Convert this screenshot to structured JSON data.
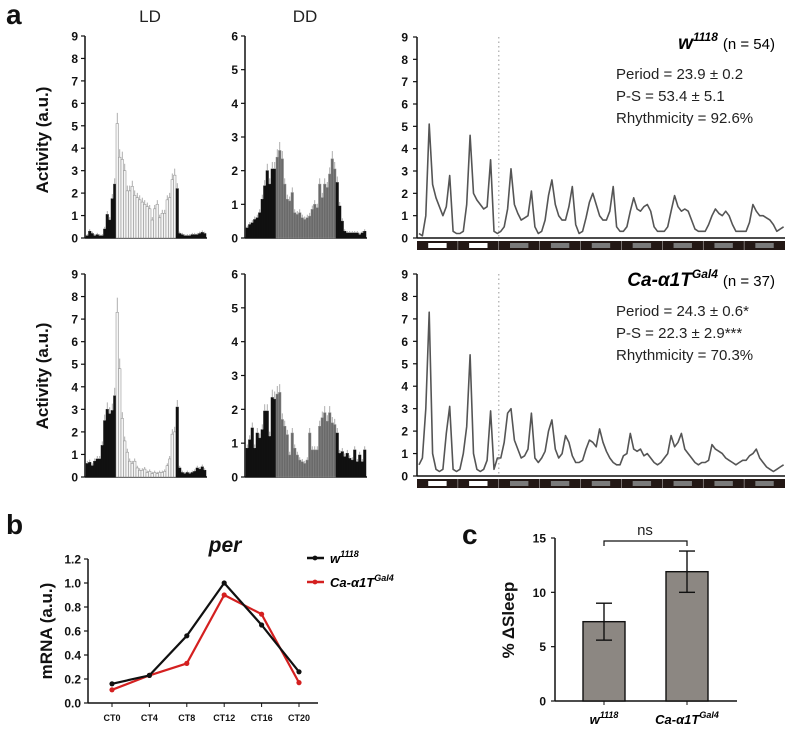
{
  "panels": {
    "a": "a",
    "b": "b",
    "c": "c"
  },
  "chart_data": [
    {
      "type": "bar",
      "title": "LD",
      "ylabel": "Activity (a.u.)",
      "ylim": [
        0,
        9
      ],
      "yticks": [
        "0",
        "1",
        "2",
        "3",
        "4",
        "5",
        "6",
        "7",
        "8",
        "9"
      ],
      "genotype": "w1118",
      "light_bins": [
        12,
        35
      ],
      "light_style": "light",
      "values": [
        0.1,
        0.3,
        0.2,
        0.1,
        0.15,
        0.1,
        0.1,
        0.4,
        1.05,
        0.8,
        1.75,
        2.4,
        5.1,
        3.6,
        3.5,
        3.0,
        2.1,
        2.1,
        2.3,
        1.9,
        1.8,
        1.7,
        1.6,
        1.5,
        1.4,
        1.3,
        0.8,
        1.3,
        1.5,
        0.9,
        1.1,
        1.1,
        1.7,
        1.8,
        2.6,
        2.8,
        2.2,
        0.2,
        0.15,
        0.1,
        0.1,
        0.1,
        0.15,
        0.15,
        0.15,
        0.2,
        0.25,
        0.2
      ]
    },
    {
      "type": "bar",
      "title": "DD",
      "ylim": [
        0,
        6
      ],
      "yticks": [
        "0",
        "1",
        "2",
        "3",
        "4",
        "5",
        "6"
      ],
      "genotype": "w1118",
      "light_bins": [
        12,
        35
      ],
      "light_style": "subjective",
      "values": [
        0.3,
        0.4,
        0.45,
        0.55,
        0.6,
        0.75,
        1.15,
        1.55,
        2.0,
        1.6,
        2.05,
        2.05,
        2.4,
        2.6,
        2.35,
        1.6,
        1.15,
        1.1,
        1.35,
        0.75,
        0.7,
        0.75,
        0.6,
        0.55,
        0.6,
        0.65,
        0.85,
        1.0,
        0.9,
        1.6,
        1.2,
        1.6,
        1.5,
        1.9,
        2.35,
        2.05,
        1.65,
        0.95,
        0.5,
        0.2,
        0.15,
        0.15,
        0.15,
        0.15,
        0.15,
        0.1,
        0.15,
        0.2
      ]
    },
    {
      "type": "line",
      "ylim": [
        0,
        9
      ],
      "yticks": [
        "0",
        "1",
        "2",
        "3",
        "4",
        "5",
        "6",
        "7",
        "8",
        "9"
      ],
      "genotype": "w",
      "genotype_sup": "1118",
      "n": "(n = 54)",
      "stats": [
        "Period = 23.9 ± 0.2",
        "P-S = 53.4 ± 5.1",
        "Rhythmicity = 92.6%"
      ],
      "days": 9,
      "ld_days": 2,
      "values": [
        0.2,
        0.1,
        1.0,
        5.1,
        2.4,
        1.8,
        1.4,
        1.0,
        1.4,
        2.8,
        0.3,
        0.2,
        0.2,
        0.3,
        1.5,
        4.6,
        2.0,
        1.7,
        1.5,
        1.3,
        1.4,
        3.5,
        0.3,
        0.2,
        0.3,
        0.5,
        1.3,
        3.1,
        1.5,
        1.1,
        0.8,
        0.9,
        1.0,
        2.1,
        0.5,
        0.2,
        0.3,
        0.8,
        1.9,
        2.6,
        1.5,
        1.0,
        0.8,
        0.8,
        1.4,
        2.3,
        0.6,
        0.2,
        0.3,
        0.9,
        1.6,
        2.0,
        1.5,
        1.0,
        0.8,
        0.8,
        1.2,
        2.3,
        0.5,
        0.3,
        0.3,
        0.5,
        1.2,
        1.8,
        1.3,
        1.2,
        1.4,
        1.5,
        1.2,
        0.5,
        0.3,
        0.3,
        0.3,
        0.5,
        1.2,
        1.9,
        1.4,
        1.2,
        1.3,
        1.2,
        0.8,
        0.4,
        0.3,
        0.3,
        0.3,
        0.6,
        1.0,
        1.3,
        1.1,
        1.0,
        1.2,
        1.0,
        0.6,
        0.3,
        0.3,
        0.3,
        0.3,
        0.7,
        1.5,
        1.2,
        1.0,
        1.0,
        0.9,
        0.8,
        0.6,
        0.3,
        0.4,
        0.5
      ]
    },
    {
      "type": "bar",
      "ylabel": "Activity (a.u.)",
      "ylim": [
        0,
        9
      ],
      "yticks": [
        "0",
        "1",
        "2",
        "3",
        "4",
        "5",
        "6",
        "7",
        "8",
        "9"
      ],
      "genotype": "Ca-α1TGal4",
      "light_bins": [
        12,
        35
      ],
      "light_style": "light",
      "values": [
        0.6,
        0.65,
        0.5,
        0.7,
        0.8,
        0.8,
        1.4,
        2.5,
        3.0,
        2.8,
        2.95,
        3.6,
        7.3,
        4.8,
        2.6,
        1.6,
        1.1,
        0.7,
        0.6,
        0.7,
        0.4,
        0.3,
        0.3,
        0.35,
        0.2,
        0.25,
        0.15,
        0.2,
        0.15,
        0.2,
        0.2,
        0.25,
        0.5,
        0.8,
        1.9,
        2.0,
        3.1,
        0.4,
        0.2,
        0.15,
        0.2,
        0.15,
        0.2,
        0.25,
        0.4,
        0.35,
        0.45,
        0.3
      ]
    },
    {
      "type": "bar",
      "ylim": [
        0,
        6
      ],
      "yticks": [
        "0",
        "1",
        "2",
        "3",
        "4",
        "5",
        "6"
      ],
      "genotype": "Ca-α1TGal4",
      "light_bins": [
        12,
        35
      ],
      "light_style": "subjective",
      "values": [
        0.85,
        1.1,
        1.45,
        0.85,
        1.3,
        1.15,
        1.4,
        1.95,
        1.95,
        1.2,
        2.35,
        2.3,
        2.45,
        2.5,
        1.7,
        1.5,
        1.25,
        0.65,
        1.3,
        0.85,
        0.65,
        0.5,
        0.45,
        0.4,
        0.5,
        1.3,
        0.8,
        0.8,
        0.8,
        1.5,
        1.75,
        1.9,
        1.65,
        1.9,
        1.6,
        1.55,
        1.3,
        0.7,
        0.75,
        0.6,
        0.7,
        0.55,
        0.5,
        0.8,
        0.45,
        0.65,
        0.45,
        0.8
      ]
    },
    {
      "type": "line",
      "ylim": [
        0,
        9
      ],
      "yticks": [
        "0",
        "1",
        "2",
        "3",
        "4",
        "5",
        "6",
        "7",
        "8",
        "9"
      ],
      "genotype": "Ca-α1T",
      "genotype_sup": "Gal4",
      "n": "(n = 37)",
      "stats": [
        "Period = 24.3 ± 0.6*",
        "P-S = 22.3 ± 2.9***",
        "Rhythmicity = 70.3%"
      ],
      "days": 9,
      "ld_days": 2,
      "values": [
        0.5,
        0.8,
        3.0,
        7.3,
        1.0,
        0.3,
        0.2,
        0.3,
        1.9,
        3.1,
        0.3,
        0.2,
        0.3,
        1.0,
        2.2,
        5.4,
        1.0,
        0.3,
        0.2,
        0.3,
        0.7,
        2.9,
        0.3,
        0.8,
        0.8,
        1.5,
        2.8,
        3.0,
        1.6,
        1.2,
        0.8,
        0.9,
        1.2,
        2.8,
        0.8,
        0.6,
        0.8,
        1.1,
        2.0,
        2.5,
        1.2,
        0.8,
        1.0,
        1.8,
        1.5,
        0.9,
        0.6,
        0.6,
        0.7,
        1.2,
        1.6,
        1.5,
        1.3,
        2.1,
        1.5,
        1.1,
        0.8,
        0.6,
        0.5,
        0.5,
        0.9,
        1.0,
        1.9,
        1.2,
        1.1,
        1.2,
        0.9,
        1.0,
        0.8,
        0.6,
        0.5,
        0.6,
        0.8,
        1.0,
        1.8,
        1.3,
        1.5,
        1.9,
        1.2,
        1.0,
        0.8,
        0.6,
        0.5,
        0.6,
        0.6,
        0.7,
        1.4,
        1.2,
        1.1,
        1.0,
        0.8,
        0.7,
        0.6,
        0.5,
        0.6,
        0.7,
        0.7,
        0.9,
        1.0,
        1.2,
        0.8,
        0.6,
        0.4,
        0.3,
        0.2,
        0.3,
        0.4,
        0.5
      ]
    },
    {
      "type": "line",
      "title": "per",
      "ylabel": "mRNA (a.u.)",
      "ylim": [
        0,
        1.2
      ],
      "yticks": [
        "0.0",
        "0.2",
        "0.4",
        "0.6",
        "0.8",
        "1.0",
        "1.2"
      ],
      "categories": [
        "CT0",
        "CT4",
        "CT8",
        "CT12",
        "CT16",
        "CT20"
      ],
      "legend": "top-right",
      "series": [
        {
          "name": "w",
          "name_sup": "1118",
          "color": "#111111",
          "values": [
            0.16,
            0.23,
            0.56,
            1.0,
            0.65,
            0.26
          ]
        },
        {
          "name": "Ca-α1T",
          "name_sup": "Gal4",
          "color": "#d42020",
          "values": [
            0.11,
            0.23,
            0.33,
            0.9,
            0.74,
            0.17
          ]
        }
      ]
    },
    {
      "type": "bar",
      "ylabel": "% ΔSleep",
      "ylim": [
        0,
        15
      ],
      "yticks": [
        "0",
        "5",
        "10",
        "15"
      ],
      "categories": [
        {
          "name": "w",
          "sup": "1118"
        },
        {
          "name": "Ca-α1T",
          "sup": "Gal4"
        }
      ],
      "values": [
        7.3,
        11.9
      ],
      "errors": [
        1.7,
        1.9
      ],
      "annotation": "ns",
      "bar_color": "#8c8782"
    }
  ]
}
